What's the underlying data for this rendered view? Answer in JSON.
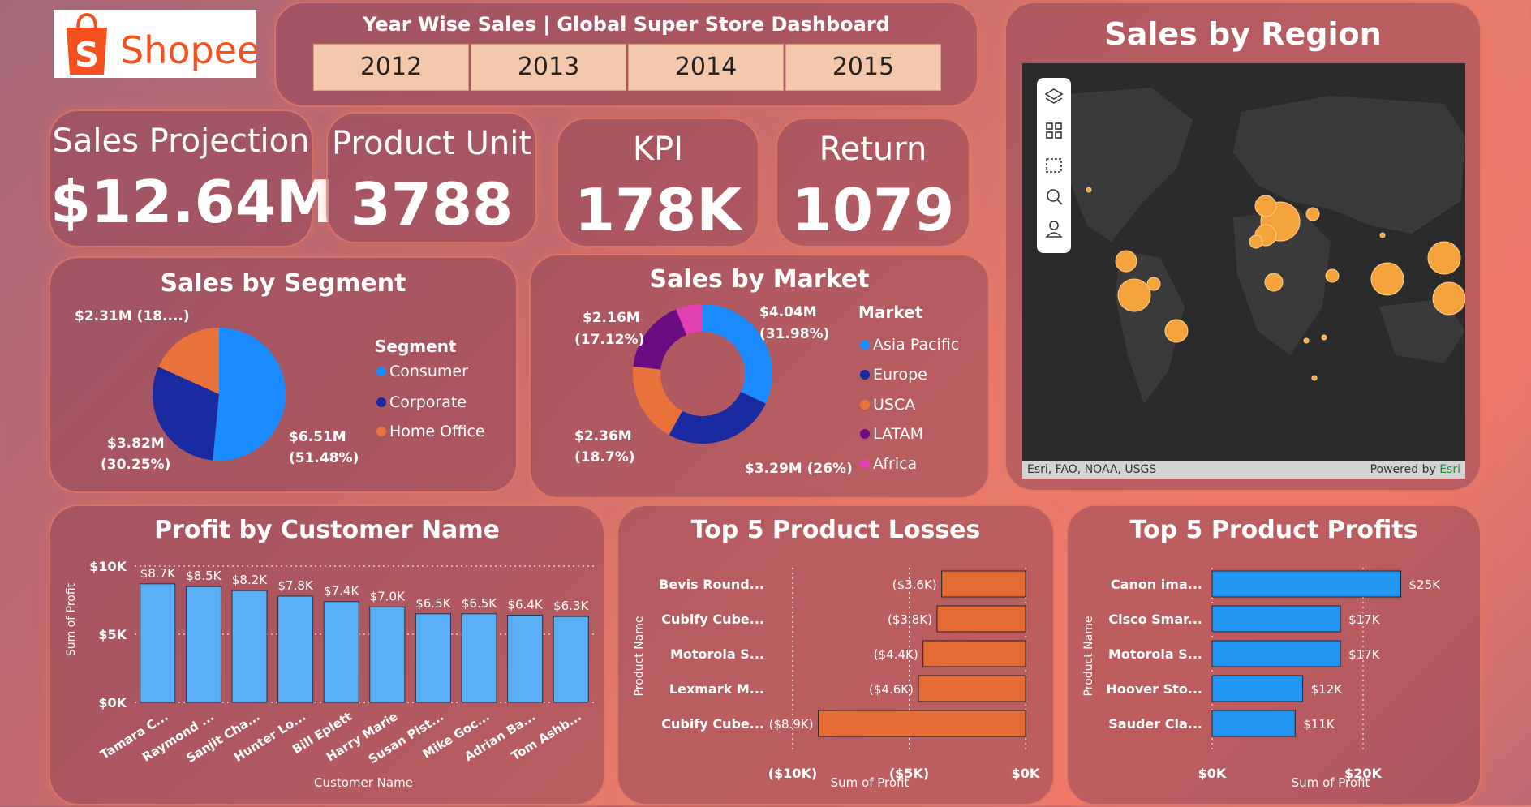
{
  "brand": {
    "name": "Shopee",
    "bag_letter": "S",
    "color": "#f5511e"
  },
  "year_filter": {
    "title": "Year Wise Sales | Global Super Store Dashboard",
    "years": [
      "2012",
      "2013",
      "2014",
      "2015"
    ]
  },
  "kpis": [
    {
      "label": "Sales Projection",
      "value": "$12.64M"
    },
    {
      "label": "Product Unit",
      "value": "3788"
    },
    {
      "label": "KPI",
      "value": "178K"
    },
    {
      "label": "Return",
      "value": "1079"
    }
  ],
  "map": {
    "title": "Sales by Region",
    "attribution": "Esri, FAO, NOAA, USGS",
    "powered_by": "Powered by",
    "esri": "Esri",
    "tool_icons": [
      "layers-icon",
      "qr-grid-icon",
      "select-rect-icon",
      "search-icon",
      "person-icon"
    ]
  },
  "colors": {
    "blue": "#1a8cff",
    "navy": "#1a2aa0",
    "orange": "#e9713a",
    "purple": "#6a0d83",
    "pink": "#e040b0",
    "bar_light": "#5ab0f7",
    "bar_blue": "#2196f3",
    "loss": "#e56b35"
  },
  "chart_data": [
    {
      "type": "pie",
      "title": "Sales by Segment",
      "legend_title": "Segment",
      "categories": [
        "Consumer",
        "Corporate",
        "Home Office"
      ],
      "values": [
        6.51,
        3.82,
        2.31
      ],
      "labels": [
        "$6.51M",
        "(51.48%)",
        "$3.82M",
        "(30.25%)",
        "$2.31M (18....)"
      ],
      "colors": [
        "#1a8cff",
        "#1a2aa0",
        "#e9713a"
      ]
    },
    {
      "type": "donut",
      "title": "Sales by Market",
      "legend_title": "Market",
      "categories": [
        "Asia Pacific",
        "Europe",
        "USCA",
        "LATAM",
        "Africa"
      ],
      "values": [
        4.04,
        3.29,
        2.36,
        2.16,
        0.79
      ],
      "labels": [
        "$4.04M",
        "(31.98%)",
        "$3.29M (26%)",
        "$2.36M",
        "(18.7%)",
        "$2.16M",
        "(17.12%)"
      ],
      "colors": [
        "#1a8cff",
        "#1a2aa0",
        "#e9713a",
        "#6a0d83",
        "#e040b0"
      ]
    },
    {
      "type": "bar",
      "title": "Profit by Customer Name",
      "xlabel": "Customer Name",
      "ylabel": "Sum of Profit",
      "categories": [
        "Tamara C...",
        "Raymond ...",
        "Sanjit Cha...",
        "Hunter Lo...",
        "Bill Eplett",
        "Harry Marie",
        "Susan Pist...",
        "Mike Goc...",
        "Adrian Ba...",
        "Tom Ashb..."
      ],
      "values": [
        8.7,
        8.5,
        8.2,
        7.8,
        7.4,
        7.0,
        6.5,
        6.5,
        6.4,
        6.3
      ],
      "value_labels": [
        "$8.7K",
        "$8.5K",
        "$8.2K",
        "$7.8K",
        "$7.4K",
        "$7.0K",
        "$6.5K",
        "$6.5K",
        "$6.4K",
        "$6.3K"
      ],
      "yticks": [
        "$10K",
        "$5K",
        "$0K"
      ],
      "ylim": [
        0,
        10
      ]
    },
    {
      "type": "bar",
      "orientation": "horizontal",
      "title": "Top 5 Product Losses",
      "xlabel": "Sum of Profit",
      "ylabel": "Product Name",
      "categories": [
        "Bevis Round...",
        "Cubify Cube...",
        "Motorola S...",
        "Lexmark M...",
        "Cubify Cube..."
      ],
      "values": [
        -3.6,
        -3.8,
        -4.4,
        -4.6,
        -8.9
      ],
      "value_labels": [
        "($3.6K)",
        "($3.8K)",
        "($4.4K)",
        "($4.6K)",
        "($8.9K)"
      ],
      "xticks": [
        "($10K)",
        "($5K)",
        "$0K"
      ],
      "xlim": [
        -10,
        0
      ]
    },
    {
      "type": "bar",
      "orientation": "horizontal",
      "title": "Top 5 Product Profits",
      "xlabel": "Sum of Profit",
      "ylabel": "Product Name",
      "categories": [
        "Canon ima...",
        "Cisco Smar...",
        "Motorola S...",
        "Hoover Sto...",
        "Sauder Cla..."
      ],
      "values": [
        25,
        17,
        17,
        12,
        11
      ],
      "value_labels": [
        "$25K",
        "$17K",
        "$17K",
        "$12K",
        "$11K"
      ],
      "xticks": [
        "$0K",
        "$20K"
      ],
      "xlim": [
        0,
        20
      ]
    }
  ]
}
